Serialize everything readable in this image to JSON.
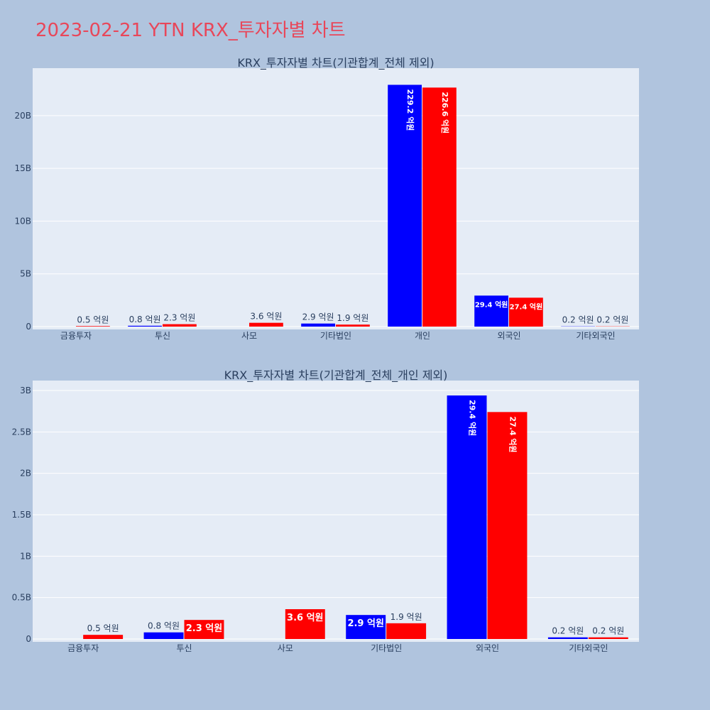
{
  "title": "2023-02-21 YTN KRX_투자자별 차트",
  "colors": {
    "buy": "#0000ff",
    "sell": "#ff0000",
    "background": "#b0c4de",
    "plot_bg": "#e5ecf6",
    "title": "#e8475a"
  },
  "chart_data": [
    {
      "type": "bar",
      "title": "KRX_투자자별 차트(기관합계_전체 제외)",
      "categories": [
        "금융투자",
        "투신",
        "사모",
        "기타법인",
        "개인",
        "외국인",
        "기타외국인"
      ],
      "series": [
        {
          "values": [
            0,
            0.08,
            0,
            0.29,
            22.92,
            2.94,
            0.02
          ],
          "labels": [
            "",
            "0.8 억원",
            "",
            "2.9 억원",
            "229.2 억원",
            "29.4 억원",
            "0.2 억원"
          ]
        },
        {
          "values": [
            0.05,
            0.23,
            0.36,
            0.19,
            22.66,
            2.74,
            0.02
          ],
          "labels": [
            "0.5 억원",
            "2.3 억원",
            "3.6 억원",
            "1.9 억원",
            "226.6 억원",
            "27.4 억원",
            "0.2 억원"
          ]
        }
      ],
      "ylim": [
        0,
        24.5
      ],
      "yticks": [
        0,
        5,
        10,
        15,
        20
      ],
      "ytick_labels": [
        "0",
        "5B",
        "10B",
        "15B",
        "20B"
      ]
    },
    {
      "type": "bar",
      "title": "KRX_투자자별 차트(기관합계_전체_개인 제외)",
      "categories": [
        "금융투자",
        "투신",
        "사모",
        "기타법인",
        "외국인",
        "기타외국인"
      ],
      "series": [
        {
          "values": [
            0,
            0.08,
            0,
            0.29,
            2.94,
            0.02
          ],
          "labels": [
            "",
            "0.8 억원",
            "",
            "2.9 억원",
            "29.4 억원",
            "0.2 억원"
          ]
        },
        {
          "values": [
            0.05,
            0.23,
            0.36,
            0.19,
            2.74,
            0.02
          ],
          "labels": [
            "0.5 억원",
            "2.3 억원",
            "3.6 억원",
            "1.9 억원",
            "27.4 억원",
            "0.2 억원"
          ]
        }
      ],
      "ylim": [
        0,
        3.12
      ],
      "yticks": [
        0,
        0.5,
        1,
        1.5,
        2,
        2.5,
        3
      ],
      "ytick_labels": [
        "0",
        "0.5B",
        "1B",
        "1.5B",
        "2B",
        "2.5B",
        "3B"
      ]
    }
  ]
}
